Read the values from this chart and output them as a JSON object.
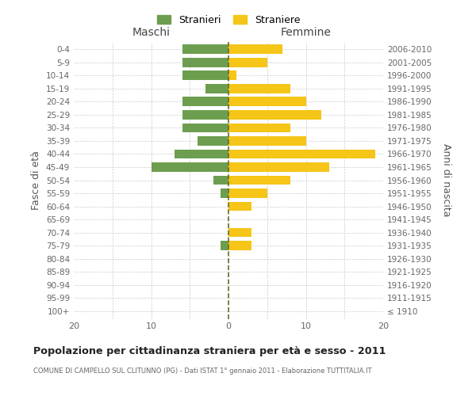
{
  "age_groups": [
    "100+",
    "95-99",
    "90-94",
    "85-89",
    "80-84",
    "75-79",
    "70-74",
    "65-69",
    "60-64",
    "55-59",
    "50-54",
    "45-49",
    "40-44",
    "35-39",
    "30-34",
    "25-29",
    "20-24",
    "15-19",
    "10-14",
    "5-9",
    "0-4"
  ],
  "birth_years": [
    "≤ 1910",
    "1911-1915",
    "1916-1920",
    "1921-1925",
    "1926-1930",
    "1931-1935",
    "1936-1940",
    "1941-1945",
    "1946-1950",
    "1951-1955",
    "1956-1960",
    "1961-1965",
    "1966-1970",
    "1971-1975",
    "1976-1980",
    "1981-1985",
    "1986-1990",
    "1991-1995",
    "1996-2000",
    "2001-2005",
    "2006-2010"
  ],
  "males": [
    0,
    0,
    0,
    0,
    0,
    1,
    0,
    0,
    0,
    1,
    2,
    10,
    7,
    4,
    6,
    6,
    6,
    3,
    6,
    6,
    6
  ],
  "females": [
    0,
    0,
    0,
    0,
    0,
    3,
    3,
    0,
    3,
    5,
    8,
    13,
    19,
    10,
    8,
    12,
    10,
    8,
    1,
    5,
    7
  ],
  "male_color": "#6d9e4f",
  "female_color": "#f5c518",
  "dashed_color": "#6b6b2a",
  "bg_color": "#ffffff",
  "grid_color": "#cccccc",
  "title": "Popolazione per cittadinanza straniera per età e sesso - 2011",
  "subtitle": "COMUNE DI CAMPELLO SUL CLITUNNO (PG) - Dati ISTAT 1° gennaio 2011 - Elaborazione TUTTITALIA.IT",
  "ylabel_left": "Fasce di età",
  "ylabel_right": "Anni di nascita",
  "legend_male": "Stranieri",
  "legend_female": "Straniere",
  "xlim": 20,
  "header_male": "Maschi",
  "header_female": "Femmine"
}
